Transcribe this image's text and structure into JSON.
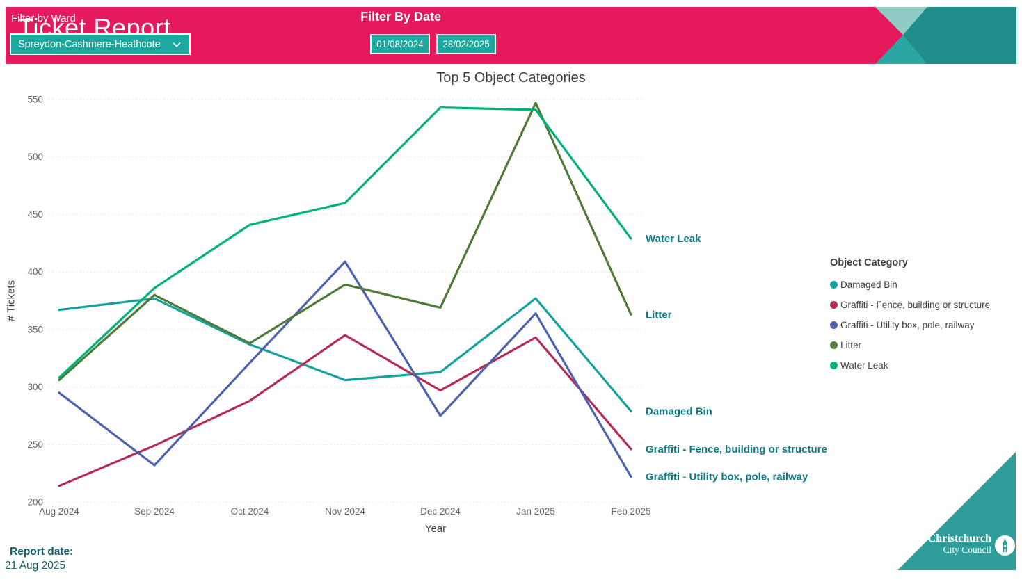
{
  "header": {
    "title": "Ticket Report",
    "subtitle": "01 08 2024 - 28 02 2025",
    "ward_filter": {
      "label": "Filter by Ward",
      "selected": "Spreydon-Cashmere-Heathcote"
    },
    "date_filter": {
      "label": "Filter By Date",
      "start": "01/08/2024",
      "end": "28/02/2025"
    }
  },
  "chart_data": {
    "type": "line",
    "title": "Top 5 Object Categories",
    "xlabel": "Year",
    "ylabel": "# Tickets",
    "ylim": [
      200,
      550
    ],
    "ytick_step": 50,
    "grid": "horizontal dotted gridlines",
    "legend_position": "right",
    "legend_title": "Object Category",
    "categories": [
      "Aug 2024",
      "Sep 2024",
      "Oct 2024",
      "Nov 2024",
      "Dec 2024",
      "Jan 2025",
      "Feb 2025"
    ],
    "series": [
      {
        "name": "Damaged Bin",
        "color": "#14A2A0",
        "values": [
          367,
          377,
          337,
          306,
          313,
          377,
          279
        ]
      },
      {
        "name": "Graffiti - Fence, building or structure",
        "color": "#B52B54",
        "values": [
          214,
          249,
          288,
          345,
          297,
          343,
          246
        ]
      },
      {
        "name": "Graffiti - Utility box, pole, railway",
        "color": "#4D62AF",
        "values": [
          295,
          232,
          321,
          409,
          275,
          364,
          222
        ]
      },
      {
        "name": "Litter",
        "color": "#4E7B38",
        "values": [
          306,
          380,
          338,
          389,
          369,
          547,
          363
        ]
      },
      {
        "name": "Water Leak",
        "color": "#00B278",
        "values": [
          308,
          386,
          441,
          460,
          543,
          541,
          429
        ]
      }
    ],
    "end_labels": [
      "Water Leak",
      "Litter",
      "Damaged Bin",
      "Graffiti - Fence, building or structure",
      "Graffiti - Utility box, pole, railway"
    ]
  },
  "footer": {
    "report_date_label": "Report date:",
    "report_date": "21 Aug 2025"
  },
  "logo": {
    "line1": "Christchurch",
    "line2": "City Council"
  },
  "colors": {
    "header_pink": "#E41A5C",
    "control_teal": "#1CA79F",
    "annotation_teal": "#0D7A85",
    "footer_teal": "#14606B",
    "corner_dark_teal": "#1F8D89",
    "corner_mid_teal": "#2AA5A1",
    "corner_light_teal": "#90CEC5",
    "logo_triangle_teal": "#2F9E9A",
    "gridline_gray": "#DCDCDC",
    "tick_gray": "#666666"
  }
}
